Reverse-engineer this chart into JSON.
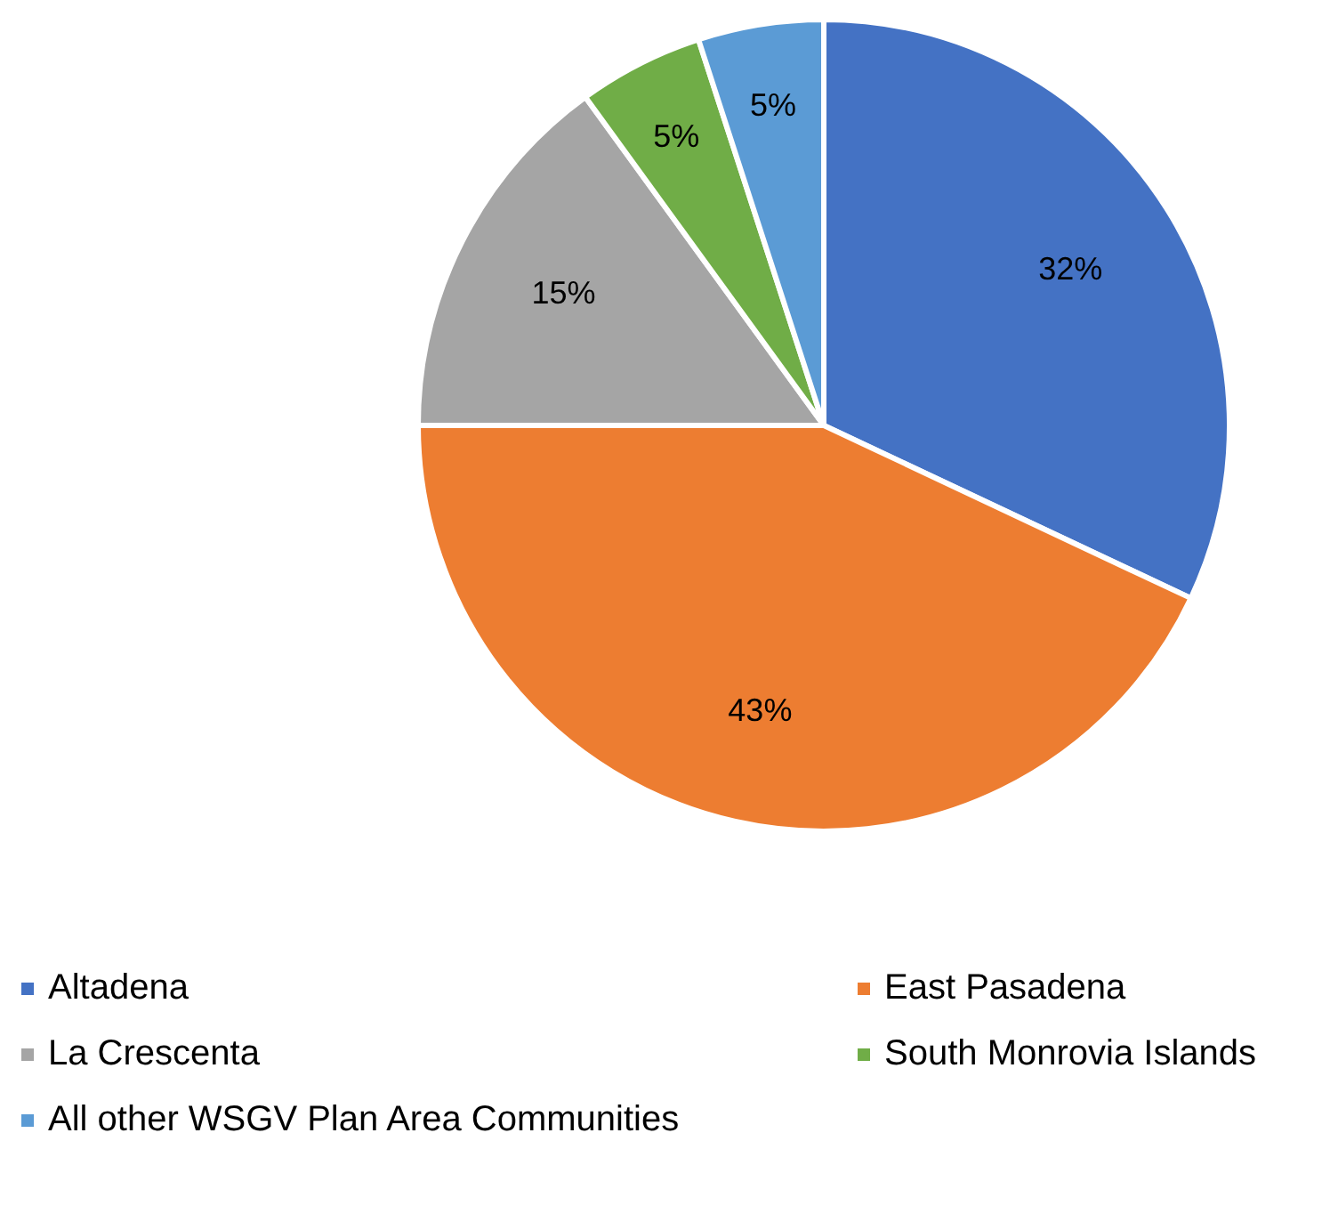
{
  "chart_data": {
    "type": "pie",
    "categories": [
      "Altadena",
      "East Pasadena",
      "La Crescenta",
      "South Monrovia Islands",
      "All other WSGV Plan Area Communities"
    ],
    "values": [
      32,
      43,
      15,
      5,
      5
    ],
    "colors": [
      "#4472c4",
      "#ed7d31",
      "#a5a5a5",
      "#70ad47",
      "#5b9bd5"
    ],
    "value_labels": [
      "32%",
      "43%",
      "15%",
      "5%",
      "5%"
    ],
    "legend": "bottom"
  }
}
